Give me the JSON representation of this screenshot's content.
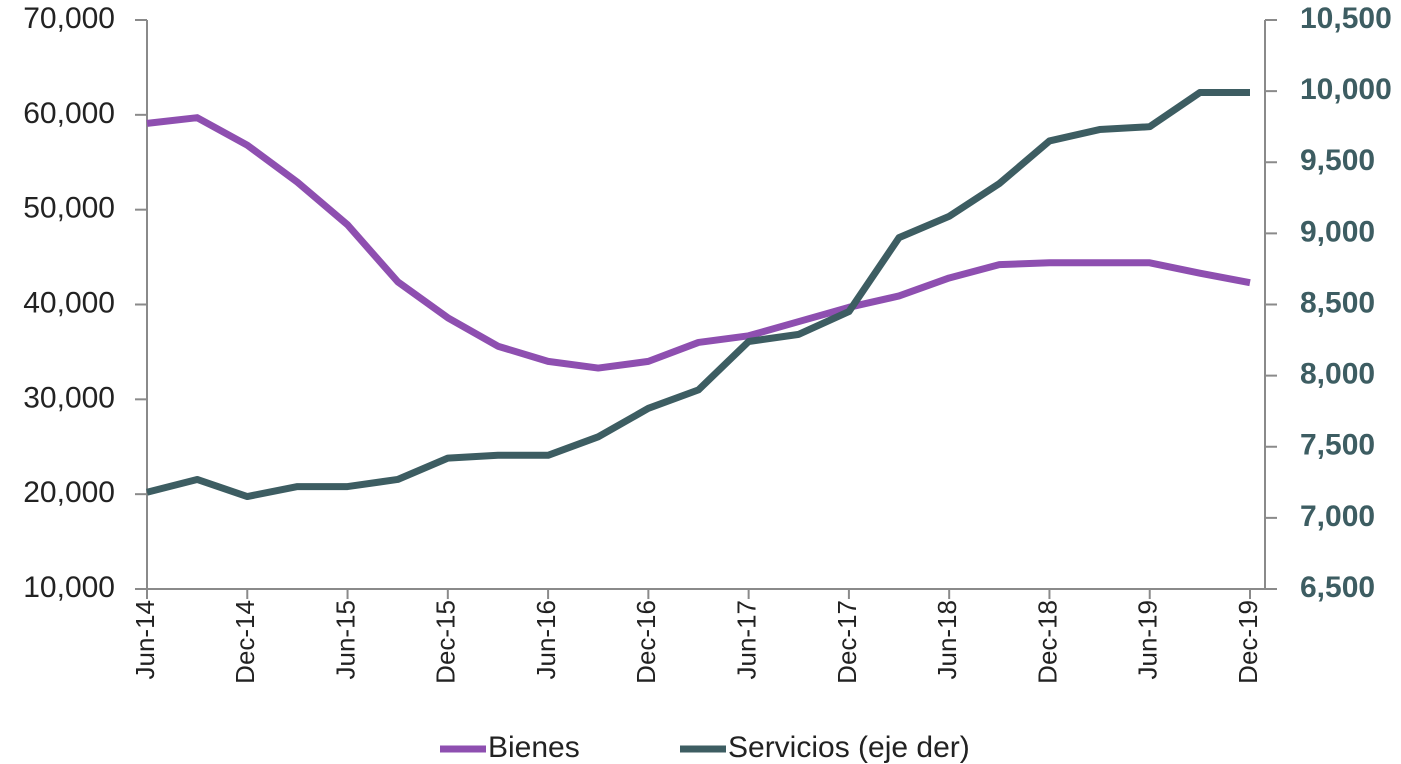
{
  "chart_data": {
    "type": "line",
    "categories": [
      "Jun-14",
      null,
      "Dec-14",
      null,
      "Jun-15",
      null,
      "Dec-15",
      null,
      "Jun-16",
      null,
      "Dec-16",
      null,
      "Jun-17",
      null,
      "Dec-17",
      null,
      "Jun-18",
      null,
      "Dec-18",
      null,
      "Jun-19",
      null,
      "Dec-19"
    ],
    "series": [
      {
        "name": "Bienes",
        "color": "#8e4fb0",
        "values": [
          59100,
          59700,
          56800,
          52900,
          48400,
          42400,
          38600,
          35600,
          34000,
          33300,
          34000,
          36000,
          36700,
          38200,
          39700,
          40900,
          42800,
          44200,
          44400,
          44400,
          44400,
          43300,
          42300
        ]
      },
      {
        "name": "Servicios (eje der)",
        "color": "#3d5d62",
        "axis": "y2",
        "values": [
          7180,
          7270,
          7150,
          7220,
          7220,
          7270,
          7420,
          7440,
          7440,
          7570,
          7770,
          7900,
          8240,
          8290,
          8450,
          8970,
          9120,
          9350,
          9650,
          9730,
          9750,
          9990,
          9990
        ]
      }
    ],
    "ylim": [
      10000,
      70000
    ],
    "yticks": [
      {
        "value": 10000,
        "label": "10,000"
      },
      {
        "value": 20000,
        "label": "20,000"
      },
      {
        "value": 30000,
        "label": "30,000"
      },
      {
        "value": 40000,
        "label": "40,000"
      },
      {
        "value": 50000,
        "label": "50,000"
      },
      {
        "value": 60000,
        "label": "60,000"
      },
      {
        "value": 70000,
        "label": "70,000"
      }
    ],
    "y2lim": [
      6500,
      10500
    ],
    "y2ticks": [
      {
        "value": 6500,
        "label": "6,500"
      },
      {
        "value": 7000,
        "label": "7,000"
      },
      {
        "value": 7500,
        "label": "7,500"
      },
      {
        "value": 8000,
        "label": "8,000"
      },
      {
        "value": 8500,
        "label": "8,500"
      },
      {
        "value": 9000,
        "label": "9,000"
      },
      {
        "value": 9500,
        "label": "9,500"
      },
      {
        "value": 10000,
        "label": "10,000"
      },
      {
        "value": 10500,
        "label": "10,500"
      }
    ],
    "legend": "bottom",
    "grid": false
  }
}
